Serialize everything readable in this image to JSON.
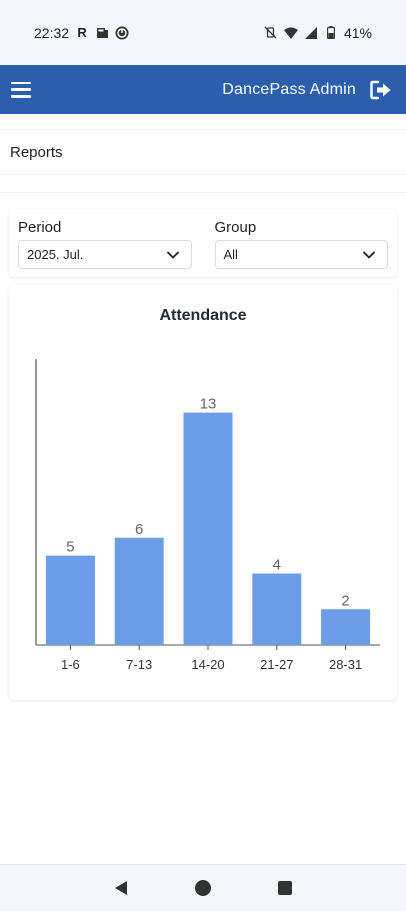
{
  "status_bar": {
    "time": "22:32",
    "battery": "41%",
    "icons": [
      "r-icon",
      "newspaper-icon",
      "clock-app-icon",
      "vibrate-off-icon",
      "wifi-icon",
      "signal-icon",
      "battery-icon"
    ]
  },
  "app_bar": {
    "title": "DancePass Admin",
    "menu_icon": "menu-icon",
    "logout_icon": "logout-icon",
    "color": "#2b5fad"
  },
  "page": {
    "title": "Reports"
  },
  "filters": {
    "period": {
      "label": "Period",
      "value": "2025. Jul."
    },
    "group": {
      "label": "Group",
      "value": "All"
    }
  },
  "chart_data": {
    "type": "bar",
    "title": "Attendance",
    "categories": [
      "1-6",
      "7-13",
      "14-20",
      "21-27",
      "28-31"
    ],
    "values": [
      5,
      6,
      13,
      4,
      2
    ],
    "data_labels": [
      "5",
      "6",
      "13",
      "4",
      "2"
    ],
    "ylim": [
      0,
      16
    ],
    "bar_color": "#6b9de8",
    "grid": false
  },
  "nav_bar": {
    "icons": [
      "back-icon",
      "home-icon",
      "recents-icon"
    ]
  }
}
